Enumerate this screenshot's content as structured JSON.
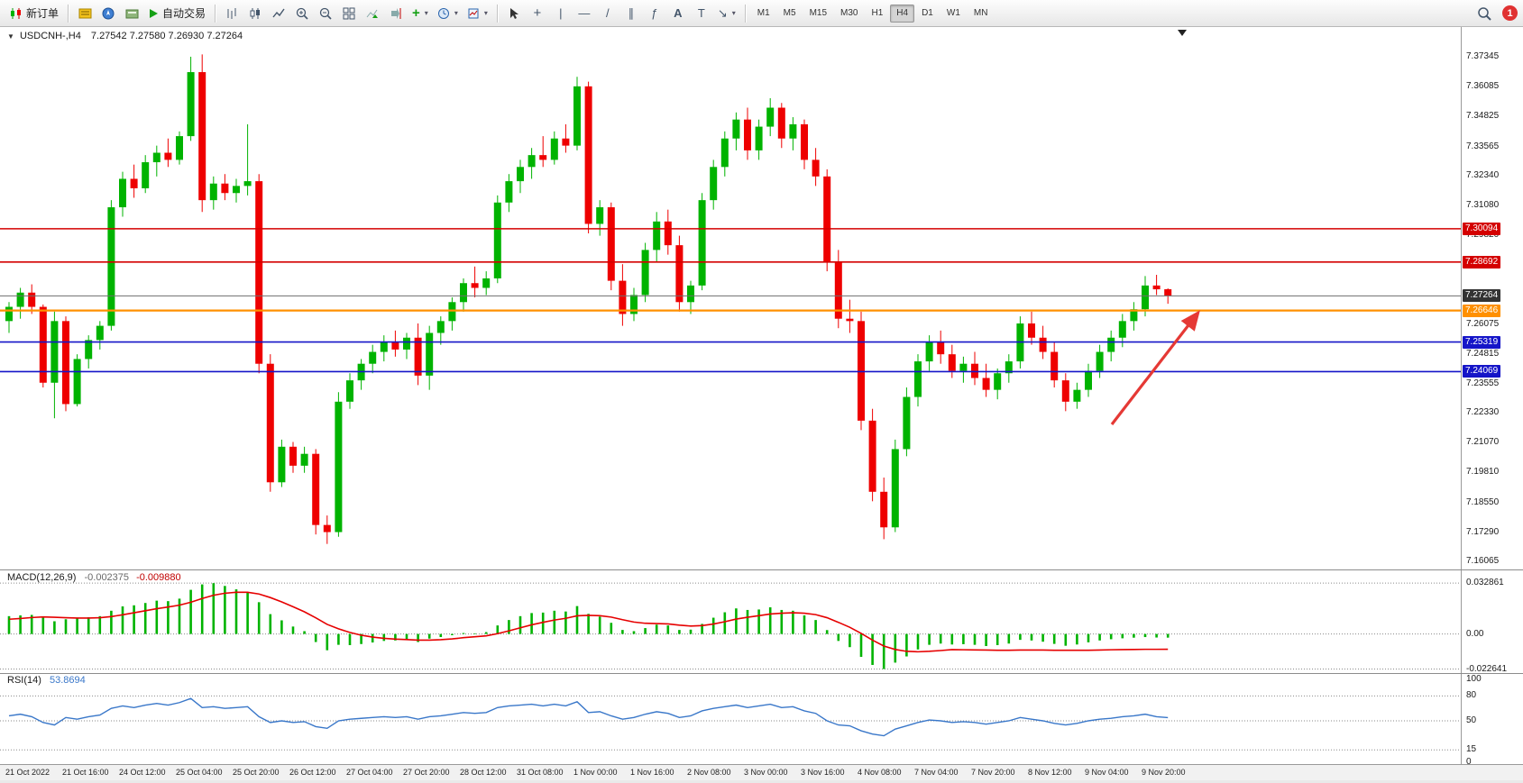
{
  "window": {
    "badge_count": "1"
  },
  "toolbar": {
    "new_order_label": "新订单",
    "autotrading_label": "自动交易",
    "timeframes": [
      "M1",
      "M5",
      "M15",
      "M30",
      "H1",
      "H4",
      "D1",
      "W1",
      "MN"
    ],
    "active_timeframe": "H4"
  },
  "chart": {
    "symbol_period": "USDCNH-,H4",
    "ohlc_line": "7.27542 7.27580 7.26930 7.27264",
    "macd_name": "MACD(12,26,9)",
    "macd_value_main": "-0.002375",
    "macd_value_signal": "-0.009880",
    "rsi_name": "RSI(14)",
    "rsi_value": "53.8694"
  },
  "chart_data": [
    {
      "type": "candlestick",
      "title": "USDCNH-,H4",
      "ohlc_current": {
        "open": 7.27542,
        "high": 7.2758,
        "low": 7.2693,
        "close": 7.27264
      },
      "ylim": [
        7.158,
        7.3845
      ],
      "up_color": "#00b300",
      "down_color": "#ee0000",
      "y_ticks": [
        "7.37345",
        "7.36085",
        "7.34825",
        "7.33565",
        "7.32340",
        "7.31080",
        "7.29820",
        "7.28560",
        "7.27300",
        "7.26075",
        "7.24815",
        "7.23555",
        "7.22330",
        "7.21070",
        "7.19810",
        "7.18550",
        "7.17290",
        "7.16065"
      ],
      "x_labels": [
        "21 Oct 2022",
        "21 Oct 16:00",
        "24 Oct 12:00",
        "25 Oct 04:00",
        "25 Oct 20:00",
        "26 Oct 12:00",
        "27 Oct 04:00",
        "27 Oct 20:00",
        "28 Oct 12:00",
        "31 Oct 08:00",
        "1 Nov 00:00",
        "1 Nov 16:00",
        "2 Nov 08:00",
        "3 Nov 00:00",
        "3 Nov 16:00",
        "4 Nov 08:00",
        "7 Nov 04:00",
        "7 Nov 20:00",
        "8 Nov 12:00",
        "9 Nov 04:00",
        "9 Nov 20:00"
      ],
      "x_label_bar_step": 5,
      "levels": [
        {
          "label": "7.30094",
          "price": 7.30094,
          "color": "#d40000",
          "tag_bg": "#d40000",
          "width": 1.6
        },
        {
          "label": "7.28692",
          "price": 7.28692,
          "color": "#d40000",
          "tag_bg": "#d40000",
          "width": 1.6
        },
        {
          "label": "7.26646",
          "price": 7.26646,
          "color": "#ff9000",
          "tag_bg": "#ff9000",
          "width": 2.2
        },
        {
          "label": "7.25319",
          "price": 7.25319,
          "color": "#1515c8",
          "tag_bg": "#1515c8",
          "width": 1.6
        },
        {
          "label": "7.24069",
          "price": 7.24069,
          "color": "#1515c8",
          "tag_bg": "#1515c8",
          "width": 1.6
        }
      ],
      "current_price": {
        "label": "7.27264",
        "price": 7.27264,
        "color": "#6e6e6e",
        "tag_bg": "#333333",
        "width": 1
      },
      "annotation_arrow": {
        "color": "#e53935",
        "direction": "up-right"
      },
      "candles": [
        [
          7.262,
          7.27,
          7.257,
          7.268
        ],
        [
          7.268,
          7.276,
          7.263,
          7.274
        ],
        [
          7.274,
          7.2775,
          7.265,
          7.268
        ],
        [
          7.268,
          7.269,
          7.234,
          7.236
        ],
        [
          7.236,
          7.266,
          7.221,
          7.262
        ],
        [
          7.262,
          7.264,
          7.224,
          7.227
        ],
        [
          7.227,
          7.248,
          7.226,
          7.246
        ],
        [
          7.246,
          7.256,
          7.242,
          7.254
        ],
        [
          7.254,
          7.262,
          7.25,
          7.26
        ],
        [
          7.26,
          7.313,
          7.258,
          7.31
        ],
        [
          7.31,
          7.325,
          7.306,
          7.322
        ],
        [
          7.322,
          7.328,
          7.314,
          7.318
        ],
        [
          7.318,
          7.332,
          7.316,
          7.329
        ],
        [
          7.329,
          7.336,
          7.323,
          7.333
        ],
        [
          7.333,
          7.339,
          7.327,
          7.33
        ],
        [
          7.33,
          7.342,
          7.328,
          7.34
        ],
        [
          7.34,
          7.3735,
          7.338,
          7.367
        ],
        [
          7.367,
          7.3745,
          7.308,
          7.313
        ],
        [
          7.313,
          7.323,
          7.309,
          7.32
        ],
        [
          7.32,
          7.324,
          7.313,
          7.316
        ],
        [
          7.316,
          7.322,
          7.312,
          7.319
        ],
        [
          7.319,
          7.345,
          7.315,
          7.321
        ],
        [
          7.321,
          7.324,
          7.24,
          7.244
        ],
        [
          7.244,
          7.248,
          7.19,
          7.194
        ],
        [
          7.194,
          7.212,
          7.192,
          7.209
        ],
        [
          7.209,
          7.211,
          7.198,
          7.201
        ],
        [
          7.201,
          7.209,
          7.198,
          7.206
        ],
        [
          7.206,
          7.208,
          7.172,
          7.176
        ],
        [
          7.176,
          7.18,
          7.168,
          7.173
        ],
        [
          7.173,
          7.232,
          7.171,
          7.228
        ],
        [
          7.228,
          7.24,
          7.225,
          7.237
        ],
        [
          7.237,
          7.246,
          7.233,
          7.244
        ],
        [
          7.244,
          7.252,
          7.24,
          7.249
        ],
        [
          7.249,
          7.256,
          7.245,
          7.253
        ],
        [
          7.253,
          7.258,
          7.247,
          7.25
        ],
        [
          7.25,
          7.257,
          7.246,
          7.255
        ],
        [
          7.255,
          7.261,
          7.235,
          7.239
        ],
        [
          7.239,
          7.26,
          7.233,
          7.257
        ],
        [
          7.257,
          7.264,
          7.252,
          7.262
        ],
        [
          7.262,
          7.272,
          7.258,
          7.27
        ],
        [
          7.27,
          7.28,
          7.266,
          7.278
        ],
        [
          7.278,
          7.285,
          7.272,
          7.276
        ],
        [
          7.276,
          7.283,
          7.273,
          7.28
        ],
        [
          7.28,
          7.315,
          7.278,
          7.312
        ],
        [
          7.312,
          7.324,
          7.308,
          7.321
        ],
        [
          7.321,
          7.33,
          7.316,
          7.327
        ],
        [
          7.327,
          7.335,
          7.322,
          7.332
        ],
        [
          7.332,
          7.34,
          7.327,
          7.33
        ],
        [
          7.33,
          7.342,
          7.328,
          7.339
        ],
        [
          7.339,
          7.345,
          7.333,
          7.336
        ],
        [
          7.336,
          7.365,
          7.334,
          7.361
        ],
        [
          7.361,
          7.363,
          7.299,
          7.303
        ],
        [
          7.303,
          7.313,
          7.298,
          7.31
        ],
        [
          7.31,
          7.312,
          7.275,
          7.279
        ],
        [
          7.279,
          7.286,
          7.26,
          7.265
        ],
        [
          7.265,
          7.276,
          7.262,
          7.273
        ],
        [
          7.273,
          7.295,
          7.27,
          7.292
        ],
        [
          7.292,
          7.308,
          7.287,
          7.304
        ],
        [
          7.304,
          7.309,
          7.29,
          7.294
        ],
        [
          7.294,
          7.298,
          7.266,
          7.27
        ],
        [
          7.27,
          7.279,
          7.265,
          7.277
        ],
        [
          7.277,
          7.316,
          7.275,
          7.313
        ],
        [
          7.313,
          7.33,
          7.309,
          7.327
        ],
        [
          7.327,
          7.342,
          7.323,
          7.339
        ],
        [
          7.339,
          7.35,
          7.334,
          7.347
        ],
        [
          7.347,
          7.352,
          7.33,
          7.334
        ],
        [
          7.334,
          7.347,
          7.33,
          7.344
        ],
        [
          7.344,
          7.356,
          7.34,
          7.352
        ],
        [
          7.352,
          7.354,
          7.335,
          7.339
        ],
        [
          7.339,
          7.348,
          7.334,
          7.345
        ],
        [
          7.345,
          7.347,
          7.326,
          7.33
        ],
        [
          7.33,
          7.335,
          7.319,
          7.323
        ],
        [
          7.323,
          7.326,
          7.283,
          7.287
        ],
        [
          7.287,
          7.292,
          7.259,
          7.263
        ],
        [
          7.263,
          7.271,
          7.257,
          7.262
        ],
        [
          7.262,
          7.266,
          7.216,
          7.22
        ],
        [
          7.22,
          7.225,
          7.186,
          7.19
        ],
        [
          7.19,
          7.196,
          7.17,
          7.175
        ],
        [
          7.175,
          7.212,
          7.173,
          7.208
        ],
        [
          7.208,
          7.234,
          7.205,
          7.23
        ],
        [
          7.23,
          7.248,
          7.226,
          7.245
        ],
        [
          7.245,
          7.256,
          7.241,
          7.253
        ],
        [
          7.253,
          7.258,
          7.244,
          7.248
        ],
        [
          7.248,
          7.252,
          7.238,
          7.241
        ],
        [
          7.241,
          7.247,
          7.236,
          7.244
        ],
        [
          7.244,
          7.249,
          7.235,
          7.238
        ],
        [
          7.238,
          7.244,
          7.23,
          7.233
        ],
        [
          7.233,
          7.242,
          7.229,
          7.24
        ],
        [
          7.24,
          7.248,
          7.236,
          7.245
        ],
        [
          7.245,
          7.264,
          7.242,
          7.261
        ],
        [
          7.261,
          7.266,
          7.252,
          7.255
        ],
        [
          7.255,
          7.26,
          7.246,
          7.249
        ],
        [
          7.249,
          7.253,
          7.234,
          7.237
        ],
        [
          7.237,
          7.24,
          7.224,
          7.228
        ],
        [
          7.228,
          7.236,
          7.225,
          7.233
        ],
        [
          7.233,
          7.244,
          7.23,
          7.241
        ],
        [
          7.241,
          7.252,
          7.238,
          7.249
        ],
        [
          7.249,
          7.258,
          7.245,
          7.255
        ],
        [
          7.255,
          7.265,
          7.251,
          7.262
        ],
        [
          7.262,
          7.27,
          7.258,
          7.267
        ],
        [
          7.267,
          7.281,
          7.264,
          7.277
        ],
        [
          7.277,
          7.2815,
          7.273,
          7.2754
        ],
        [
          7.27542,
          7.2758,
          7.2693,
          7.27264
        ]
      ]
    },
    {
      "type": "bar",
      "title": "MACD(12,26,9)",
      "values_label": "-0.002375 -0.009880",
      "ylim": [
        -0.0235,
        0.0335
      ],
      "y_ticks": [
        "0.032861",
        "0.00",
        "-0.022641"
      ],
      "histogram_color": "#00b300",
      "signal_color": "#e60000",
      "histogram": [
        0.0115,
        0.012,
        0.0123,
        0.0105,
        0.0082,
        0.0095,
        0.01,
        0.0108,
        0.0115,
        0.015,
        0.0178,
        0.0185,
        0.02,
        0.0215,
        0.0212,
        0.0228,
        0.0285,
        0.032,
        0.0328,
        0.031,
        0.0288,
        0.0268,
        0.0205,
        0.0128,
        0.0088,
        0.0048,
        0.0018,
        -0.0052,
        -0.0105,
        -0.007,
        -0.0072,
        -0.0065,
        -0.0055,
        -0.0045,
        -0.0042,
        -0.0036,
        -0.0052,
        -0.003,
        -0.002,
        -0.0008,
        0.0006,
        0.0004,
        0.0012,
        0.0055,
        0.009,
        0.0115,
        0.0135,
        0.0138,
        0.015,
        0.0145,
        0.018,
        0.013,
        0.0112,
        0.0072,
        0.0026,
        0.0018,
        0.0038,
        0.006,
        0.0055,
        0.0026,
        0.0028,
        0.0065,
        0.0105,
        0.014,
        0.0165,
        0.0155,
        0.0158,
        0.0172,
        0.0155,
        0.015,
        0.012,
        0.009,
        0.0025,
        -0.0045,
        -0.0085,
        -0.0148,
        -0.02,
        -0.0226,
        -0.0185,
        -0.0145,
        -0.01,
        -0.007,
        -0.0062,
        -0.0068,
        -0.0066,
        -0.007,
        -0.0078,
        -0.0072,
        -0.0062,
        -0.0038,
        -0.0042,
        -0.005,
        -0.0064,
        -0.0076,
        -0.0068,
        -0.0054,
        -0.0042,
        -0.0034,
        -0.0028,
        -0.0024,
        -0.002,
        -0.0023,
        -0.002375
      ],
      "signal": [
        0.0095,
        0.01,
        0.0106,
        0.011,
        0.0108,
        0.0105,
        0.0103,
        0.0103,
        0.0105,
        0.0112,
        0.0124,
        0.0137,
        0.015,
        0.0163,
        0.0174,
        0.0186,
        0.0205,
        0.0229,
        0.025,
        0.0263,
        0.0269,
        0.0269,
        0.0258,
        0.0235,
        0.0207,
        0.0176,
        0.0143,
        0.0104,
        0.0062,
        0.0033,
        0.001,
        -0.0008,
        -0.002,
        -0.0028,
        -0.0033,
        -0.0036,
        -0.004,
        -0.004,
        -0.0037,
        -0.0032,
        -0.0024,
        -0.0018,
        -0.0012,
        0.0002,
        0.002,
        0.004,
        0.0059,
        0.0075,
        0.009,
        0.0101,
        0.0117,
        0.012,
        0.0118,
        0.0109,
        0.0092,
        0.0077,
        0.0069,
        0.0067,
        0.0065,
        0.0057,
        0.0051,
        0.0054,
        0.0064,
        0.0079,
        0.0096,
        0.0108,
        0.0118,
        0.0129,
        0.0134,
        0.0137,
        0.0134,
        0.0125,
        0.0105,
        0.0075,
        0.0043,
        0.0004,
        -0.004,
        -0.0078,
        -0.01,
        -0.0112,
        -0.0115,
        -0.0112,
        -0.0107,
        -0.0101,
        -0.0102,
        -0.0103,
        -0.0104,
        -0.0105,
        -0.0105,
        -0.0104,
        -0.0104,
        -0.0104,
        -0.0105,
        -0.0105,
        -0.0105,
        -0.0105,
        -0.0104,
        -0.0102,
        -0.0101,
        -0.01,
        -0.0099,
        -0.0099,
        -0.00988
      ]
    },
    {
      "type": "line",
      "title": "RSI(14)",
      "current": 53.8694,
      "ylim": [
        0,
        100
      ],
      "y_ticks": [
        "100",
        "80",
        "50",
        "15",
        "0"
      ],
      "levels": [
        80,
        50,
        15
      ],
      "line_color": "#3977c9",
      "values": [
        56,
        58,
        55,
        48,
        45,
        54,
        52,
        55,
        57,
        65,
        68,
        66,
        69,
        71,
        69,
        72,
        77,
        66,
        67,
        65,
        66,
        67,
        55,
        48,
        50,
        48,
        49,
        43,
        41,
        50,
        52,
        53,
        54,
        55,
        54,
        55,
        52,
        55,
        56,
        58,
        60,
        59,
        60,
        66,
        68,
        69,
        70,
        68,
        70,
        68,
        73,
        60,
        61,
        56,
        52,
        54,
        58,
        61,
        59,
        54,
        56,
        62,
        65,
        67,
        69,
        66,
        68,
        70,
        66,
        67,
        62,
        59,
        50,
        45,
        44,
        38,
        34,
        32,
        40,
        44,
        48,
        51,
        50,
        48,
        49,
        48,
        46,
        48,
        50,
        54,
        52,
        50,
        47,
        45,
        47,
        50,
        52,
        53,
        55,
        56,
        58,
        55,
        53.8694
      ]
    }
  ]
}
